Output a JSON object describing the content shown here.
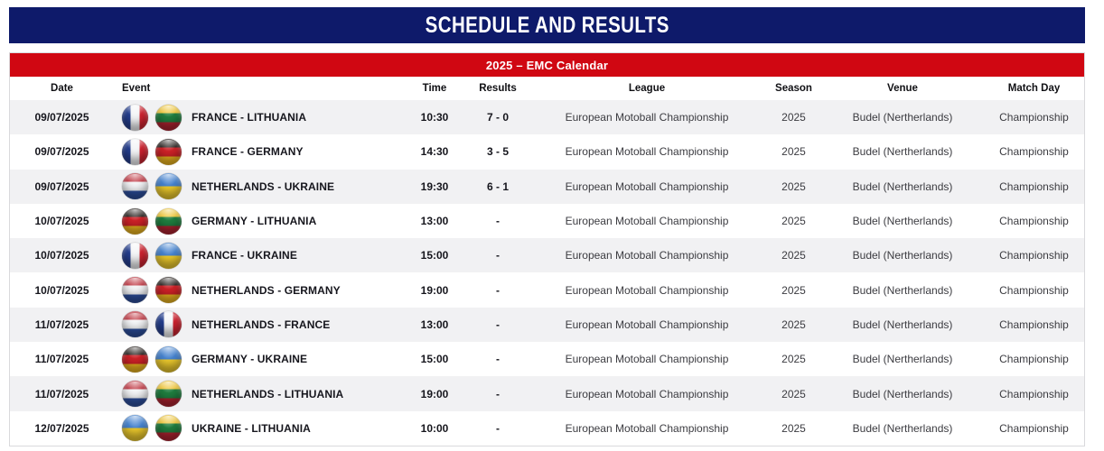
{
  "header": {
    "title": "SCHEDULE AND RESULTS"
  },
  "calendar": {
    "title": "2025 – EMC Calendar"
  },
  "colors": {
    "navy_header": "#0e1a6a",
    "red_band": "#d00712",
    "row_shaded": "#f1f1f3"
  },
  "table": {
    "columns": [
      "Date",
      "Event",
      "Time",
      "Results",
      "League",
      "Season",
      "Venue",
      "Match Day"
    ],
    "rows": [
      {
        "date": "09/07/2025",
        "flags": [
          "france",
          "lithuania"
        ],
        "event": "FRANCE - LITHUANIA",
        "time": "10:30",
        "results": "7 - 0",
        "league": "European Motoball Championship",
        "season": "2025",
        "venue": "Budel (Nertherlands)",
        "match_day": "Championship"
      },
      {
        "date": "09/07/2025",
        "flags": [
          "france",
          "germany"
        ],
        "event": "FRANCE - GERMANY",
        "time": "14:30",
        "results": "3 - 5",
        "league": "European Motoball Championship",
        "season": "2025",
        "venue": "Budel (Nertherlands)",
        "match_day": "Championship"
      },
      {
        "date": "09/07/2025",
        "flags": [
          "netherlands",
          "ukraine"
        ],
        "event": "NETHERLANDS - UKRAINE",
        "time": "19:30",
        "results": "6 - 1",
        "league": "European Motoball Championship",
        "season": "2025",
        "venue": "Budel (Nertherlands)",
        "match_day": "Championship"
      },
      {
        "date": "10/07/2025",
        "flags": [
          "germany",
          "lithuania"
        ],
        "event": "GERMANY - LITHUANIA",
        "time": "13:00",
        "results": "-",
        "league": "European Motoball Championship",
        "season": "2025",
        "venue": "Budel (Nertherlands)",
        "match_day": "Championship"
      },
      {
        "date": "10/07/2025",
        "flags": [
          "france",
          "ukraine"
        ],
        "event": "FRANCE - UKRAINE",
        "time": "15:00",
        "results": "-",
        "league": "European Motoball Championship",
        "season": "2025",
        "venue": "Budel (Nertherlands)",
        "match_day": "Championship"
      },
      {
        "date": "10/07/2025",
        "flags": [
          "netherlands",
          "germany"
        ],
        "event": "NETHERLANDS - GERMANY",
        "time": "19:00",
        "results": "-",
        "league": "European Motoball Championship",
        "season": "2025",
        "venue": "Budel (Nertherlands)",
        "match_day": "Championship"
      },
      {
        "date": "11/07/2025",
        "flags": [
          "netherlands",
          "france"
        ],
        "event": "NETHERLANDS - FRANCE",
        "time": "13:00",
        "results": "-",
        "league": "European Motoball Championship",
        "season": "2025",
        "venue": "Budel (Nertherlands)",
        "match_day": "Championship"
      },
      {
        "date": "11/07/2025",
        "flags": [
          "germany",
          "ukraine"
        ],
        "event": "GERMANY - UKRAINE",
        "time": "15:00",
        "results": "-",
        "league": "European Motoball Championship",
        "season": "2025",
        "venue": "Budel (Nertherlands)",
        "match_day": "Championship"
      },
      {
        "date": "11/07/2025",
        "flags": [
          "netherlands",
          "lithuania"
        ],
        "event": "NETHERLANDS - LITHUANIA",
        "time": "19:00",
        "results": "-",
        "league": "European Motoball Championship",
        "season": "2025",
        "venue": "Budel (Nertherlands)",
        "match_day": "Championship"
      },
      {
        "date": "12/07/2025",
        "flags": [
          "ukraine",
          "lithuania"
        ],
        "event": "UKRAINE - LITHUANIA",
        "time": "10:00",
        "results": "-",
        "league": "European Motoball Championship",
        "season": "2025",
        "venue": "Budel (Nertherlands)",
        "match_day": "Championship"
      }
    ]
  }
}
